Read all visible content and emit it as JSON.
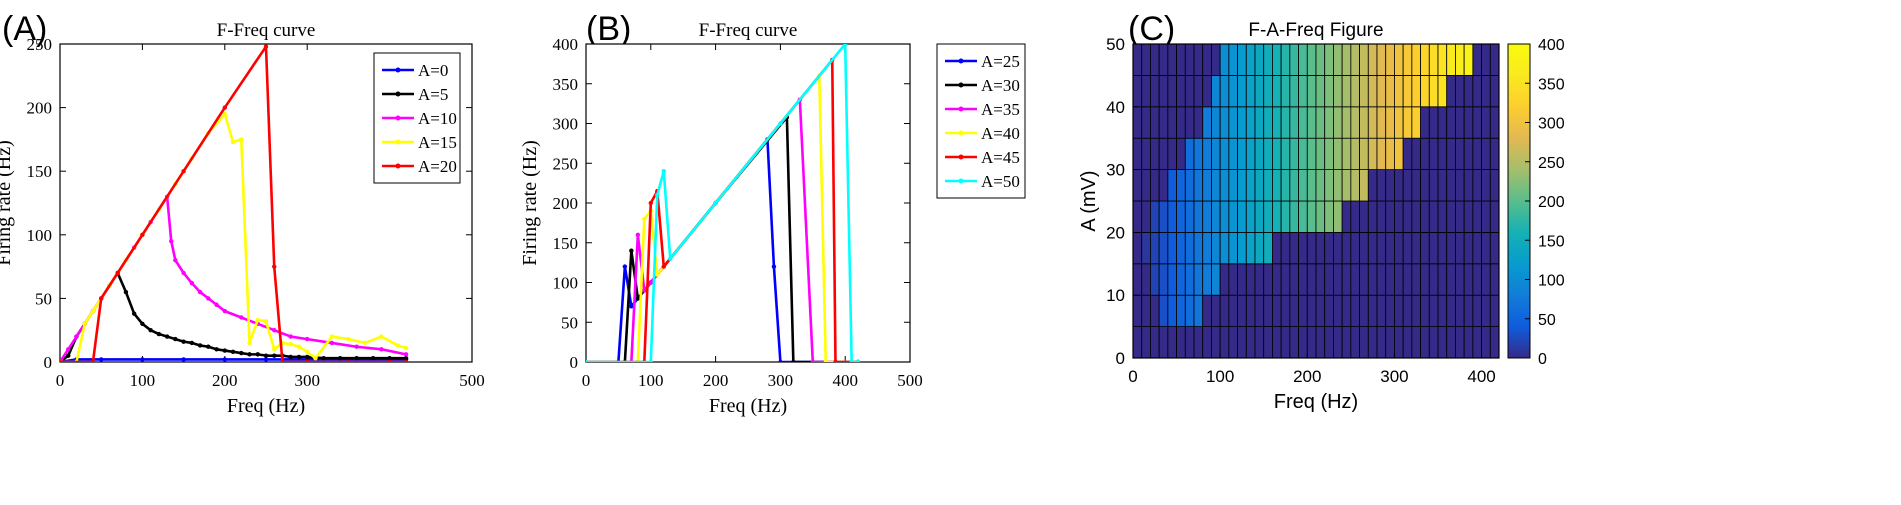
{
  "panels": {
    "A": {
      "letter": "(A)"
    },
    "B": {
      "letter": "(B)"
    },
    "C": {
      "letter": "(C)"
    }
  },
  "chart_data": [
    {
      "id": "A",
      "type": "line",
      "title": "F-Freq curve",
      "xlabel": "Freq (Hz)",
      "ylabel": "Firing rate (Hz)",
      "xlim": [
        0,
        500
      ],
      "ylim": [
        0,
        250
      ],
      "xticks": [
        0,
        100,
        200,
        300,
        500
      ],
      "xtick_labels": [
        "0",
        "100",
        "200",
        "300",
        "500"
      ],
      "yticks": [
        0,
        50,
        100,
        150,
        200,
        250
      ],
      "legend_position": "top-right",
      "grid": false,
      "series": [
        {
          "name": "A=0",
          "color": "#0000ff",
          "x": [
            0,
            20,
            50,
            100,
            150,
            200,
            250,
            300,
            350,
            400,
            420
          ],
          "y": [
            0,
            2,
            2,
            2,
            2,
            2,
            2,
            2,
            2,
            2,
            2
          ]
        },
        {
          "name": "A=5",
          "color": "#000000",
          "x": [
            0,
            10,
            20,
            30,
            40,
            50,
            60,
            70,
            80,
            90,
            100,
            110,
            120,
            130,
            140,
            150,
            160,
            170,
            180,
            190,
            200,
            210,
            220,
            230,
            240,
            250,
            260,
            270,
            280,
            290,
            300,
            320,
            340,
            360,
            380,
            400,
            420
          ],
          "y": [
            0,
            5,
            20,
            30,
            40,
            50,
            60,
            70,
            55,
            38,
            30,
            25,
            22,
            20,
            18,
            16,
            15,
            13,
            12,
            10,
            9,
            8,
            7,
            6,
            6,
            5,
            5,
            5,
            4,
            4,
            4,
            3,
            3,
            3,
            3,
            3,
            3
          ]
        },
        {
          "name": "A=10",
          "color": "#ff00ff",
          "x": [
            0,
            10,
            20,
            30,
            40,
            50,
            70,
            90,
            110,
            130,
            135,
            140,
            150,
            160,
            170,
            180,
            190,
            200,
            220,
            240,
            260,
            280,
            300,
            330,
            360,
            390,
            420
          ],
          "y": [
            0,
            10,
            20,
            30,
            40,
            50,
            70,
            90,
            110,
            130,
            95,
            80,
            70,
            62,
            55,
            50,
            45,
            40,
            35,
            30,
            25,
            20,
            18,
            15,
            12,
            10,
            6
          ]
        },
        {
          "name": "A=15",
          "color": "#ffff00",
          "x": [
            0,
            20,
            30,
            40,
            60,
            80,
            100,
            120,
            140,
            160,
            180,
            200,
            210,
            220,
            230,
            240,
            250,
            260,
            270,
            280,
            290,
            300,
            310,
            330,
            350,
            370,
            390,
            410,
            420
          ],
          "y": [
            0,
            0,
            30,
            40,
            60,
            80,
            100,
            120,
            140,
            160,
            180,
            195,
            173,
            175,
            15,
            33,
            32,
            10,
            15,
            14,
            12,
            8,
            3,
            20,
            18,
            15,
            20,
            13,
            11
          ]
        },
        {
          "name": "A=20",
          "color": "#ff0000",
          "x": [
            0,
            40,
            50,
            70,
            100,
            150,
            200,
            250,
            260,
            270,
            300,
            350,
            400,
            420
          ],
          "y": [
            0,
            0,
            50,
            70,
            100,
            150,
            200,
            248,
            75,
            0,
            0,
            0,
            0,
            0
          ]
        }
      ]
    },
    {
      "id": "B",
      "type": "line",
      "title": "F-Freq curve",
      "xlabel": "Freq (Hz)",
      "ylabel": "Firing rate (Hz)",
      "xlim": [
        0,
        500
      ],
      "ylim": [
        0,
        400
      ],
      "xticks": [
        0,
        100,
        200,
        300,
        400,
        500
      ],
      "yticks": [
        0,
        50,
        100,
        150,
        200,
        250,
        300,
        350,
        400
      ],
      "legend_position": "top-right",
      "grid": false,
      "series": [
        {
          "name": "A=25",
          "color": "#0000ff",
          "x": [
            0,
            50,
            60,
            70,
            80,
            100,
            200,
            280,
            290,
            300,
            420
          ],
          "y": [
            0,
            0,
            120,
            70,
            80,
            100,
            200,
            280,
            120,
            0,
            0
          ]
        },
        {
          "name": "A=30",
          "color": "#000000",
          "x": [
            0,
            60,
            70,
            80,
            90,
            100,
            200,
            310,
            320,
            420
          ],
          "y": [
            0,
            0,
            140,
            80,
            90,
            100,
            200,
            308,
            0,
            0
          ]
        },
        {
          "name": "A=35",
          "color": "#ff00ff",
          "x": [
            0,
            70,
            80,
            90,
            100,
            200,
            330,
            350,
            420
          ],
          "y": [
            0,
            0,
            160,
            90,
            100,
            200,
            330,
            0,
            0
          ]
        },
        {
          "name": "A=40",
          "color": "#ffff00",
          "x": [
            0,
            80,
            90,
            100,
            110,
            200,
            360,
            370,
            420
          ],
          "y": [
            0,
            0,
            180,
            190,
            110,
            200,
            360,
            0,
            0
          ]
        },
        {
          "name": "A=45",
          "color": "#ff0000",
          "x": [
            0,
            90,
            100,
            110,
            120,
            200,
            380,
            385,
            420
          ],
          "y": [
            0,
            0,
            200,
            215,
            120,
            200,
            380,
            0,
            0
          ]
        },
        {
          "name": "A=50",
          "color": "#00ffff",
          "x": [
            0,
            100,
            110,
            120,
            130,
            200,
            300,
            400,
            410,
            420
          ],
          "y": [
            0,
            0,
            210,
            240,
            130,
            200,
            300,
            400,
            0,
            0
          ]
        }
      ]
    },
    {
      "id": "C",
      "type": "heatmap",
      "title": "F-A-Freq Figure",
      "xlabel": "Freq (Hz)",
      "ylabel": "A (mV)",
      "xlim": [
        0,
        420
      ],
      "ylim": [
        0,
        50
      ],
      "xticks": [
        0,
        100,
        200,
        300,
        400
      ],
      "yticks": [
        0,
        10,
        20,
        30,
        40,
        50
      ],
      "x_step": 10,
      "y_step": 5,
      "colorbar": {
        "min": 0,
        "max": 400,
        "ticks": [
          0,
          50,
          100,
          150,
          200,
          250,
          300,
          350,
          400
        ]
      },
      "rule": "value equals Freq inside the firing region, 0 elsewhere; region per A row given as [start, end] in Hz",
      "rows": [
        {
          "A": 0,
          "start": null,
          "end": null
        },
        {
          "A": 5,
          "start": 30,
          "end": 70
        },
        {
          "A": 10,
          "start": 20,
          "end": 90
        },
        {
          "A": 15,
          "start": 10,
          "end": 150
        },
        {
          "A": 20,
          "start": 20,
          "end": 230
        },
        {
          "A": 25,
          "start": 40,
          "end": 260
        },
        {
          "A": 30,
          "start": 60,
          "end": 300
        },
        {
          "A": 35,
          "start": 80,
          "end": 320
        },
        {
          "A": 40,
          "start": 90,
          "end": 350
        },
        {
          "A": 45,
          "start": 100,
          "end": 380
        },
        {
          "A": 50,
          "start": 110,
          "end": 400
        }
      ]
    }
  ]
}
